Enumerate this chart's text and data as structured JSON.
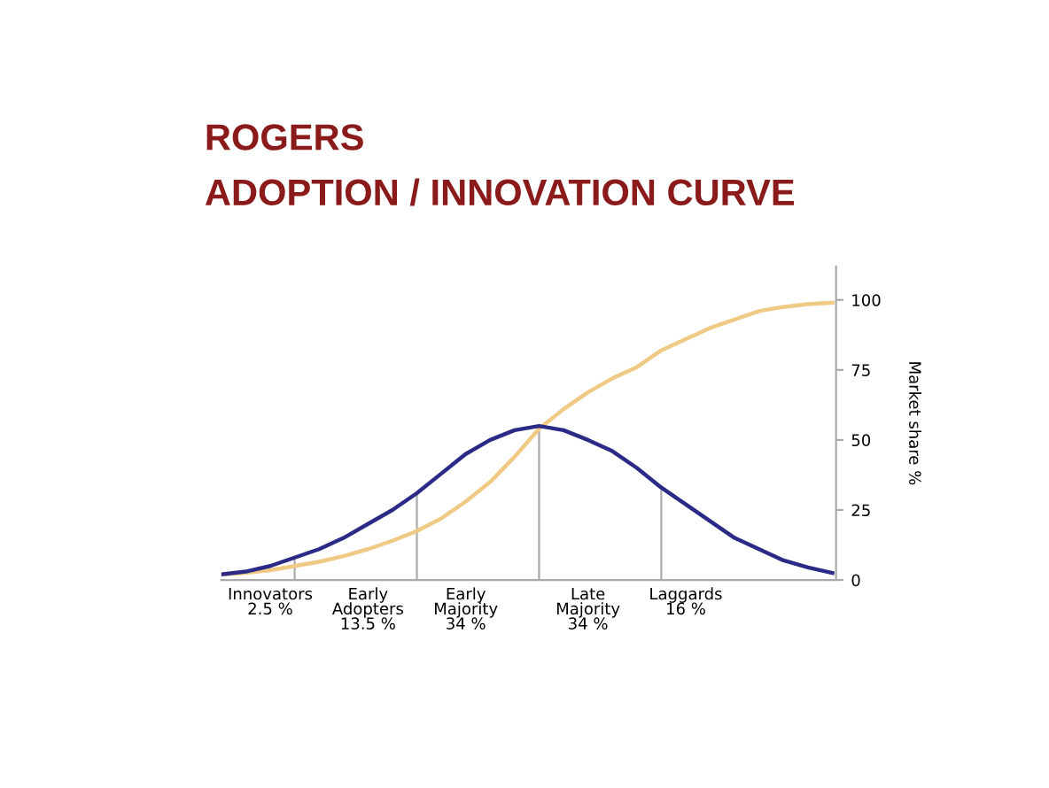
{
  "chart_data": {
    "type": "line",
    "title": "ROGERS",
    "subtitle": "ADOPTION / INNOVATION CURVE",
    "ylabel": "Market share %",
    "categories": [
      null,
      null,
      "Innovators\n2.5 %\n ",
      null,
      null,
      null,
      "Early\nAdopters\n13.5 %",
      null,
      null,
      null,
      "Early\nMajority\n34 %",
      null,
      null,
      null,
      null,
      "Late\nMajority\n34 %",
      null,
      null,
      null,
      "Laggards\n16 %\n ",
      null,
      null,
      null,
      null,
      null,
      null
    ],
    "series": [
      {
        "type": "bar",
        "color": "#aaaaaa",
        "values": [
          null,
          null,
          null,
          8,
          null,
          null,
          null,
          null,
          31,
          null,
          null,
          null,
          null,
          55,
          null,
          null,
          null,
          null,
          33,
          null,
          null,
          null,
          null,
          null,
          null,
          null
        ]
      },
      {
        "color": "#f0c985",
        "values": [
          2,
          2.5,
          3.5,
          5,
          6.5,
          8.5,
          11,
          14,
          17.5,
          22,
          28,
          35,
          44,
          54,
          61,
          67,
          72,
          76,
          82,
          86,
          90,
          93,
          96,
          97.5,
          98.5,
          99
        ]
      },
      {
        "color": "#2b2a86",
        "values": [
          2,
          3,
          5,
          8,
          11,
          15,
          20,
          25,
          31,
          38,
          45,
          50,
          53.5,
          55,
          53.5,
          50,
          46,
          40,
          33,
          27,
          21,
          15,
          11,
          7,
          4.5,
          2.5
        ]
      }
    ],
    "ylim": [
      0,
      112
    ],
    "yticks": [
      0,
      25,
      50,
      75,
      100
    ],
    "grid": false,
    "legend": false,
    "marker": "none",
    "line_style": "solid"
  }
}
